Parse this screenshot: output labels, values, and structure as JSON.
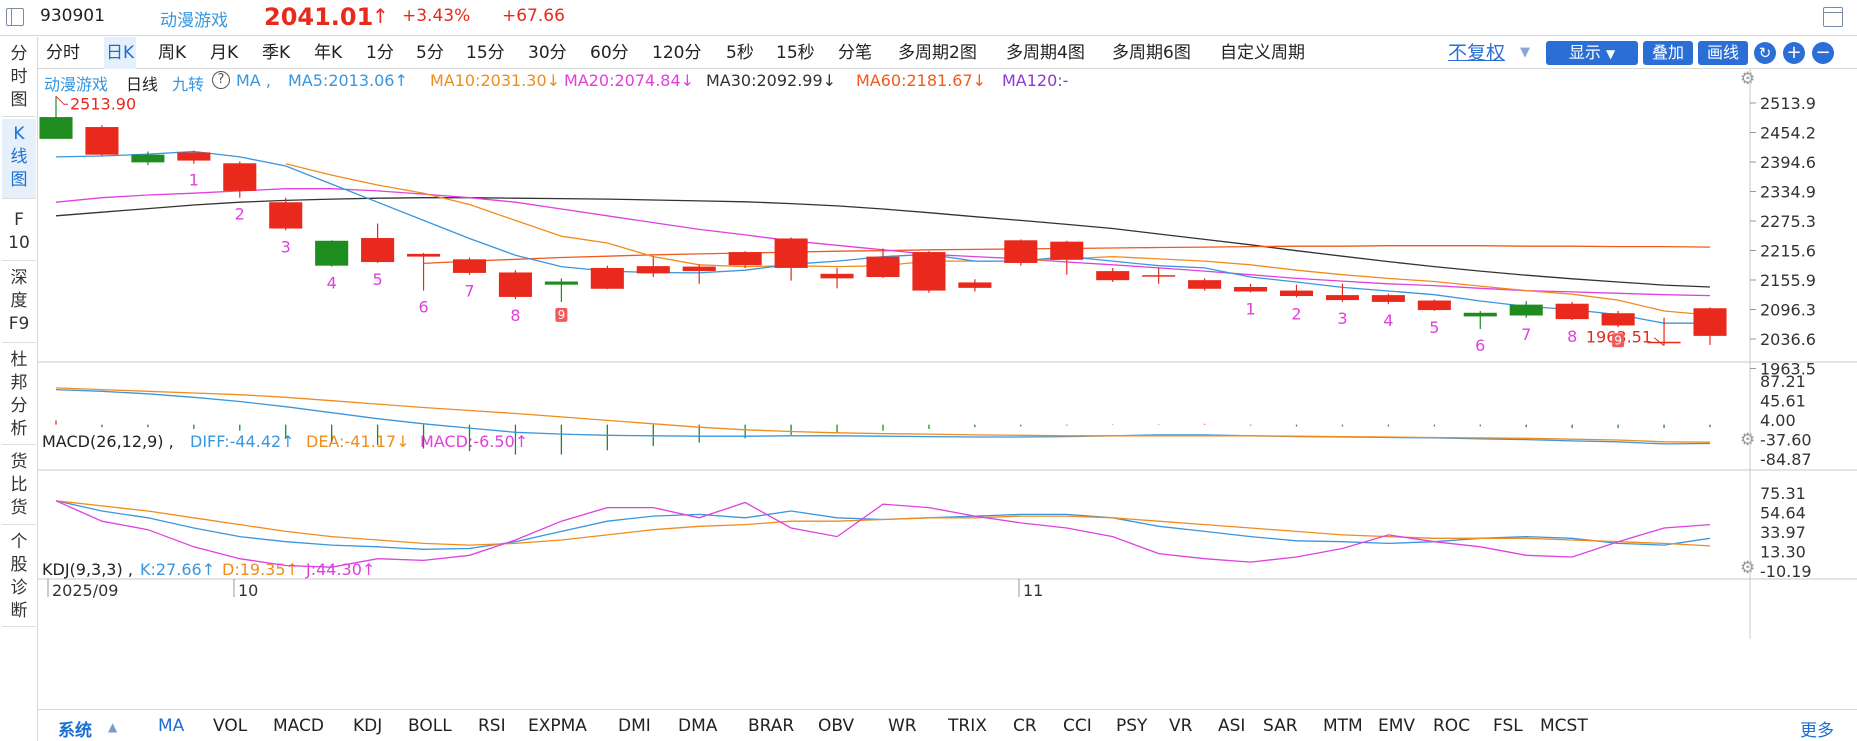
{
  "header": {
    "code": "930901",
    "name": "动漫游戏",
    "price": "2041.01",
    "price_arrow": "↑",
    "change_pct": "+3.43%",
    "change_abs": "+67.66"
  },
  "left_tabs": [
    "分\n时\n图",
    "K\n线\n图",
    "F\n10",
    "深\n度\nF9",
    "杜\n邦\n分\n析",
    "货\n比\n货",
    "个\n股\n诊\n断"
  ],
  "periods": [
    "分时",
    "日K",
    "周K",
    "月K",
    "季K",
    "年K",
    "1分",
    "5分",
    "15分",
    "30分",
    "60分",
    "120分",
    "5秒",
    "15秒",
    "分笔",
    "多周期2图",
    "多周期4图",
    "多周期6图",
    "自定义周期"
  ],
  "toolbar": {
    "fuquan": "不复权",
    "display": "显示",
    "overlay": "叠加",
    "draw": "画线",
    "refresh_icon": "refresh-icon",
    "zoom_in": "+",
    "zoom_out": "−"
  },
  "ma_bar": {
    "name": "动漫游戏",
    "period": "日线",
    "nine": "九转",
    "help": "?",
    "ma_label": "MA ,",
    "ma5": "MA5:2013.06↑",
    "ma10": "MA10:2031.30↓",
    "ma20": "MA20:2074.84↓",
    "ma30": "MA30:2092.99↓",
    "ma60": "MA60:2181.67↓",
    "ma120": "MA120:-"
  },
  "macd_bar": {
    "name": "MACD(26,12,9) ,",
    "diff": "DIFF:-44.42↑",
    "dea": "DEA:-41.17↓",
    "macd": "MACD:-6.50↑"
  },
  "kdj_bar": {
    "name": "KDJ(9,3,3) ,",
    "k": "K:27.66↑",
    "d": "D:19.35↑",
    "j": "J:44.30↑"
  },
  "bottom_tabs": {
    "system": "系统",
    "items": [
      "MA",
      "VOL",
      "MACD",
      "KDJ",
      "BOLL",
      "RSI",
      "EXPMA",
      "DMI",
      "DMA",
      "BRAR",
      "OBV",
      "WR",
      "TRIX",
      "CR",
      "CCI",
      "PSY",
      "VR",
      "ASI",
      "SAR",
      "MTM",
      "EMV",
      "ROC",
      "FSL",
      "MCST"
    ],
    "more": "更多"
  },
  "colors": {
    "up": "#e8291c",
    "down": "#1e8c1e",
    "ma5": "#3a96dd",
    "ma10": "#f08c1e",
    "ma20": "#e040e0",
    "ma30": "#333333",
    "ma60": "#f05a1e",
    "accent": "#2b6fd6"
  },
  "chart_data": {
    "type": "candlestick",
    "price_axis_ticks": [
      "2513.9",
      "2454.2",
      "2394.6",
      "2334.9",
      "2275.3",
      "2215.6",
      "2155.9",
      "2096.3",
      "2036.6",
      "1963.5"
    ],
    "max_label": "2513.90",
    "min_label": "1963.51",
    "date_labels": [
      "2025/09",
      "10",
      "11"
    ],
    "nine_turn_labels_first": [
      "1",
      "2",
      "3",
      "4",
      "5",
      "6",
      "7",
      "8",
      "9"
    ],
    "nine_turn_labels_second": [
      "1",
      "2",
      "3",
      "4",
      "5",
      "6",
      "7",
      "8",
      "9"
    ],
    "candles": [
      {
        "o": 2468,
        "c": 2420,
        "h": 2513.9,
        "l": 2420
      },
      {
        "o": 2385,
        "c": 2446,
        "h": 2450,
        "l": 2382
      },
      {
        "o": 2385,
        "c": 2368,
        "h": 2392,
        "l": 2362
      },
      {
        "o": 2372,
        "c": 2390,
        "h": 2394,
        "l": 2365
      },
      {
        "o": 2305,
        "c": 2366,
        "h": 2370,
        "l": 2290
      },
      {
        "o": 2222,
        "c": 2280,
        "h": 2290,
        "l": 2218
      },
      {
        "o": 2195,
        "c": 2140,
        "h": 2196,
        "l": 2138
      },
      {
        "o": 2148,
        "c": 2201,
        "h": 2233,
        "l": 2146
      },
      {
        "o": 2160,
        "c": 2166,
        "h": 2168,
        "l": 2085
      },
      {
        "o": 2124,
        "c": 2154,
        "h": 2158,
        "l": 2120
      },
      {
        "o": 2071,
        "c": 2125,
        "h": 2130,
        "l": 2066
      },
      {
        "o": 2105,
        "c": 2098,
        "h": 2112,
        "l": 2060
      },
      {
        "o": 2089,
        "c": 2135,
        "h": 2140,
        "l": 2088
      },
      {
        "o": 2123,
        "c": 2139,
        "h": 2160,
        "l": 2115
      },
      {
        "o": 2128,
        "c": 2138,
        "h": 2143,
        "l": 2100
      },
      {
        "o": 2141,
        "c": 2170,
        "h": 2172,
        "l": 2135
      },
      {
        "o": 2135,
        "c": 2200,
        "h": 2202,
        "l": 2107
      },
      {
        "o": 2112,
        "c": 2122,
        "h": 2135,
        "l": 2090
      },
      {
        "o": 2115,
        "c": 2160,
        "h": 2178,
        "l": 2113
      },
      {
        "o": 2085,
        "c": 2170,
        "h": 2172,
        "l": 2080
      },
      {
        "o": 2091,
        "c": 2103,
        "h": 2110,
        "l": 2083
      },
      {
        "o": 2146,
        "c": 2196,
        "h": 2198,
        "l": 2140
      },
      {
        "o": 2153,
        "c": 2193,
        "h": 2195,
        "l": 2120
      },
      {
        "o": 2108,
        "c": 2128,
        "h": 2135,
        "l": 2104
      },
      {
        "o": 2119,
        "c": 2119,
        "h": 2135,
        "l": 2100
      },
      {
        "o": 2089,
        "c": 2108,
        "h": 2112,
        "l": 2085
      },
      {
        "o": 2083,
        "c": 2093,
        "h": 2100,
        "l": 2081
      },
      {
        "o": 2073,
        "c": 2085,
        "h": 2098,
        "l": 2070
      },
      {
        "o": 2064,
        "c": 2075,
        "h": 2100,
        "l": 2060
      },
      {
        "o": 2060,
        "c": 2075,
        "h": 2078,
        "l": 2055
      },
      {
        "o": 2042,
        "c": 2063,
        "h": 2065,
        "l": 2040
      },
      {
        "o": 2036,
        "c": 2028,
        "h": 2040,
        "l": 2000
      },
      {
        "o": 2054,
        "c": 2030,
        "h": 2062,
        "l": 2025
      },
      {
        "o": 2022,
        "c": 2056,
        "h": 2060,
        "l": 2020
      },
      {
        "o": 2008,
        "c": 2035,
        "h": 2040,
        "l": 2004
      },
      {
        "o": 1972,
        "c": 1972,
        "h": 2025,
        "l": 1963.5
      },
      {
        "o": 1985,
        "c": 2046,
        "h": 2048,
        "l": 1965
      }
    ],
    "ma5": [
      2380,
      2382,
      2386,
      2392,
      2380,
      2360,
      2320,
      2280,
      2240,
      2200,
      2163,
      2138,
      2128,
      2125,
      2124,
      2130,
      2143,
      2150,
      2160,
      2165,
      2150,
      2150,
      2160,
      2150,
      2140,
      2135,
      2115,
      2104,
      2092,
      2084,
      2076,
      2062,
      2050,
      2043,
      2032,
      2013,
      2013
    ],
    "ma10": [
      null,
      null,
      null,
      null,
      null,
      2365,
      2340,
      2318,
      2300,
      2275,
      2240,
      2205,
      2190,
      2160,
      2142,
      2138,
      2140,
      2138,
      2140,
      2150,
      2150,
      2150,
      2155,
      2160,
      2155,
      2150,
      2142,
      2130,
      2120,
      2112,
      2105,
      2095,
      2085,
      2077,
      2064,
      2040,
      2031
    ],
    "ma20": [
      2280,
      2290,
      2296,
      2300,
      2305,
      2310,
      2310,
      2305,
      2298,
      2290,
      2280,
      2265,
      2250,
      2235,
      2220,
      2208,
      2195,
      2185,
      2175,
      2165,
      2160,
      2155,
      2148,
      2142,
      2135,
      2128,
      2120,
      2112,
      2106,
      2100,
      2096,
      2090,
      2085,
      2082,
      2079,
      2076,
      2074
    ],
    "ma30": [
      2250,
      2258,
      2266,
      2274,
      2280,
      2284,
      2287,
      2289,
      2290,
      2290,
      2289,
      2288,
      2287,
      2285,
      2283,
      2281,
      2277,
      2272,
      2265,
      2257,
      2248,
      2240,
      2231,
      2222,
      2210,
      2198,
      2186,
      2173,
      2161,
      2149,
      2138,
      2128,
      2119,
      2111,
      2104,
      2097,
      2093
    ],
    "ma60": [
      null,
      null,
      null,
      null,
      null,
      null,
      null,
      null,
      2145,
      2150,
      2154,
      2158,
      2161,
      2164,
      2166,
      2168,
      2170,
      2172,
      2173,
      2175,
      2176,
      2177,
      2178,
      2179,
      2180,
      2181,
      2182,
      2183,
      2183,
      2184,
      2184,
      2184,
      2183,
      2183,
      2182,
      2182,
      2181
    ],
    "macd_axis_ticks": [
      "87.21",
      "45.61",
      "4.00",
      "-37.60",
      "-84.87"
    ],
    "macd_diff": [
      82,
      78,
      72,
      64,
      54,
      42,
      28,
      14,
      2,
      -8,
      -18,
      -22,
      -25,
      -26,
      -27,
      -27,
      -26,
      -26,
      -27,
      -28,
      -29,
      -29,
      -28,
      -26,
      -24,
      -24,
      -26,
      -28,
      -29,
      -30,
      -31,
      -33,
      -35,
      -38,
      -40,
      -45,
      -44
    ],
    "macd_dea": [
      86,
      82,
      78,
      74,
      70,
      64,
      56,
      48,
      40,
      33,
      26,
      18,
      10,
      2,
      -6,
      -12,
      -16,
      -19,
      -21,
      -22,
      -24,
      -25,
      -26,
      -26,
      -26,
      -26,
      -26,
      -27,
      -28,
      -29,
      -30,
      -31,
      -32,
      -34,
      -36,
      -40,
      -41
    ],
    "macd_hist": [
      10,
      -6,
      -6,
      -10,
      -14,
      -32,
      -40,
      -48,
      -56,
      -62,
      -70,
      -70,
      -60,
      -50,
      -42,
      -32,
      -24,
      -20,
      -14,
      -10,
      -6,
      -4,
      -2,
      -1,
      -1,
      2,
      -2,
      -4,
      -4,
      -4,
      -4,
      -4,
      -6,
      -8,
      -8,
      -8,
      -6
    ],
    "kdj_axis_ticks": [
      "75.31",
      "54.64",
      "33.97",
      "13.30",
      "-10.19"
    ],
    "kdj_k": [
      72,
      60,
      52,
      40,
      30,
      24,
      20,
      18,
      15,
      16,
      24,
      36,
      48,
      54,
      56,
      52,
      60,
      52,
      50,
      52,
      54,
      56,
      56,
      52,
      42,
      36,
      30,
      25,
      24,
      22,
      24,
      28,
      30,
      28,
      22,
      20,
      28
    ],
    "kdj_d": [
      72,
      66,
      60,
      52,
      44,
      36,
      30,
      26,
      22,
      20,
      22,
      26,
      32,
      38,
      42,
      44,
      48,
      48,
      50,
      52,
      52,
      54,
      54,
      52,
      48,
      44,
      40,
      36,
      32,
      30,
      28,
      28,
      28,
      26,
      24,
      22,
      19
    ],
    "kdj_j": [
      72,
      48,
      38,
      18,
      4,
      -4,
      -6,
      4,
      2,
      8,
      26,
      48,
      64,
      64,
      52,
      70,
      40,
      30,
      68,
      64,
      54,
      46,
      40,
      30,
      10,
      4,
      0,
      6,
      16,
      32,
      24,
      18,
      8,
      6,
      24,
      40,
      44
    ]
  }
}
